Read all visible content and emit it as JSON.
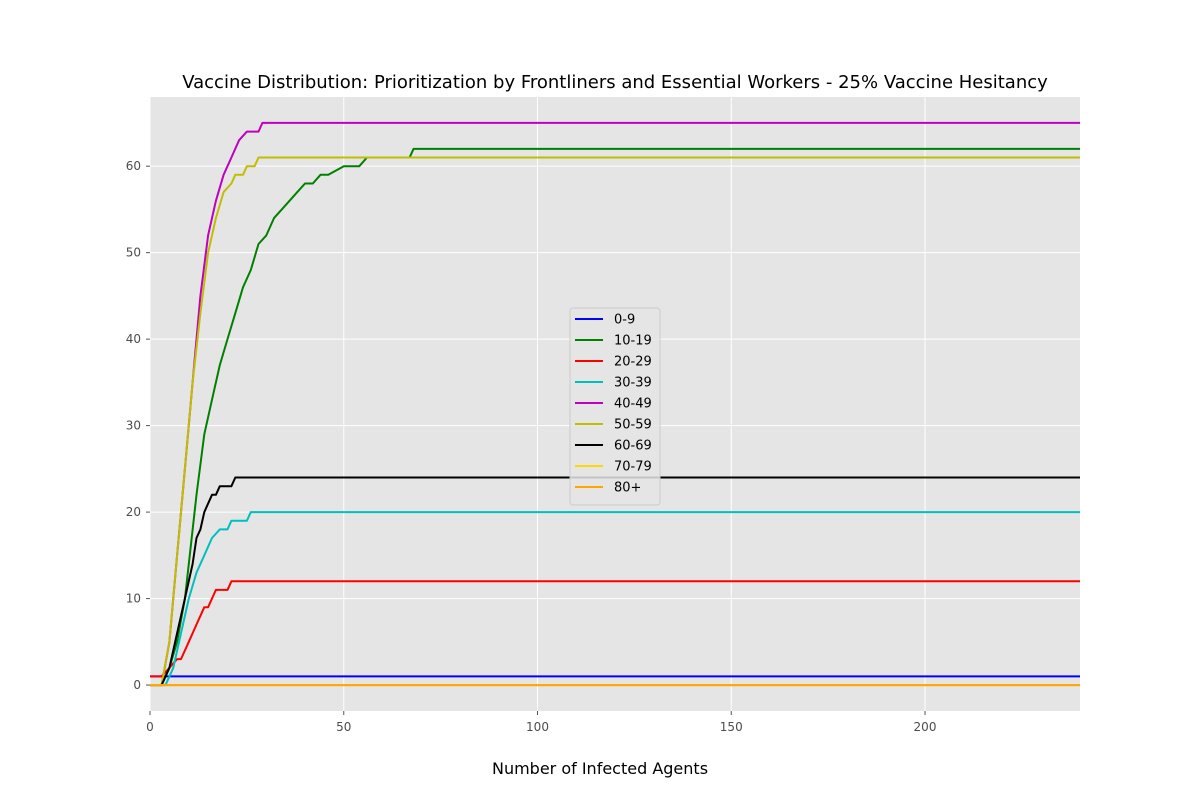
{
  "chart_data": {
    "type": "line",
    "title": "Vaccine Distribution: Prioritization by Frontliners and Essential Workers - 25% Vaccine Hesitancy",
    "xlabel": "Number of Infected Agents",
    "ylabel": "",
    "xlim": [
      0,
      240
    ],
    "ylim": [
      -3,
      68
    ],
    "xticks": [
      0,
      50,
      100,
      150,
      200
    ],
    "yticks": [
      0,
      10,
      20,
      30,
      40,
      50,
      60
    ],
    "grid": true,
    "legend_position": "center",
    "series": [
      {
        "name": "0-9",
        "color": "#0000ff",
        "points": [
          [
            0,
            1
          ],
          [
            240,
            1
          ]
        ]
      },
      {
        "name": "10-19",
        "color": "#008000",
        "points": [
          [
            0,
            0
          ],
          [
            3,
            0
          ],
          [
            5,
            2
          ],
          [
            7,
            5
          ],
          [
            9,
            10
          ],
          [
            10,
            14
          ],
          [
            12,
            22
          ],
          [
            14,
            29
          ],
          [
            16,
            33
          ],
          [
            18,
            37
          ],
          [
            20,
            40
          ],
          [
            22,
            43
          ],
          [
            24,
            46
          ],
          [
            26,
            48
          ],
          [
            28,
            51
          ],
          [
            30,
            52
          ],
          [
            32,
            54
          ],
          [
            34,
            55
          ],
          [
            36,
            56
          ],
          [
            38,
            57
          ],
          [
            40,
            58
          ],
          [
            42,
            58
          ],
          [
            44,
            59
          ],
          [
            46,
            59
          ],
          [
            50,
            60
          ],
          [
            54,
            60
          ],
          [
            56,
            61
          ],
          [
            60,
            61
          ],
          [
            67,
            61
          ],
          [
            68,
            62
          ],
          [
            240,
            62
          ]
        ]
      },
      {
        "name": "20-29",
        "color": "#ff0000",
        "points": [
          [
            0,
            1
          ],
          [
            3,
            1
          ],
          [
            5,
            2
          ],
          [
            7,
            3
          ],
          [
            8,
            3
          ],
          [
            10,
            5
          ],
          [
            12,
            7
          ],
          [
            14,
            9
          ],
          [
            15,
            9
          ],
          [
            17,
            11
          ],
          [
            20,
            11
          ],
          [
            21,
            12
          ],
          [
            240,
            12
          ]
        ]
      },
      {
        "name": "30-39",
        "color": "#00bfbf",
        "points": [
          [
            0,
            0
          ],
          [
            4,
            0
          ],
          [
            6,
            2
          ],
          [
            8,
            6
          ],
          [
            10,
            10
          ],
          [
            12,
            13
          ],
          [
            14,
            15
          ],
          [
            16,
            17
          ],
          [
            18,
            18
          ],
          [
            20,
            18
          ],
          [
            21,
            19
          ],
          [
            25,
            19
          ],
          [
            26,
            20
          ],
          [
            240,
            20
          ]
        ]
      },
      {
        "name": "40-49",
        "color": "#bf00bf",
        "points": [
          [
            0,
            0
          ],
          [
            3,
            0
          ],
          [
            5,
            5
          ],
          [
            7,
            15
          ],
          [
            9,
            25
          ],
          [
            11,
            35
          ],
          [
            13,
            45
          ],
          [
            15,
            52
          ],
          [
            17,
            56
          ],
          [
            19,
            59
          ],
          [
            21,
            61
          ],
          [
            23,
            63
          ],
          [
            25,
            64
          ],
          [
            28,
            64
          ],
          [
            29,
            65
          ],
          [
            240,
            65
          ]
        ]
      },
      {
        "name": "50-59",
        "color": "#bfbf00",
        "points": [
          [
            0,
            0
          ],
          [
            3,
            0
          ],
          [
            5,
            5
          ],
          [
            7,
            15
          ],
          [
            9,
            25
          ],
          [
            11,
            35
          ],
          [
            13,
            43
          ],
          [
            15,
            50
          ],
          [
            17,
            54
          ],
          [
            19,
            57
          ],
          [
            21,
            58
          ],
          [
            22,
            59
          ],
          [
            24,
            59
          ],
          [
            25,
            60
          ],
          [
            27,
            60
          ],
          [
            28,
            61
          ],
          [
            240,
            61
          ]
        ]
      },
      {
        "name": "60-69",
        "color": "#000000",
        "points": [
          [
            3,
            0
          ],
          [
            5,
            2
          ],
          [
            7,
            6
          ],
          [
            9,
            10
          ],
          [
            11,
            14
          ],
          [
            12,
            17
          ],
          [
            13,
            18
          ],
          [
            14,
            20
          ],
          [
            16,
            22
          ],
          [
            17,
            22
          ],
          [
            18,
            23
          ],
          [
            21,
            23
          ],
          [
            22,
            24
          ],
          [
            240,
            24
          ]
        ]
      },
      {
        "name": "70-79",
        "color": "#ffd700",
        "points": [
          [
            0,
            0
          ],
          [
            240,
            0
          ]
        ]
      },
      {
        "name": "80+",
        "color": "#ffa500",
        "points": [
          [
            0,
            0
          ],
          [
            240,
            0
          ]
        ]
      }
    ]
  }
}
